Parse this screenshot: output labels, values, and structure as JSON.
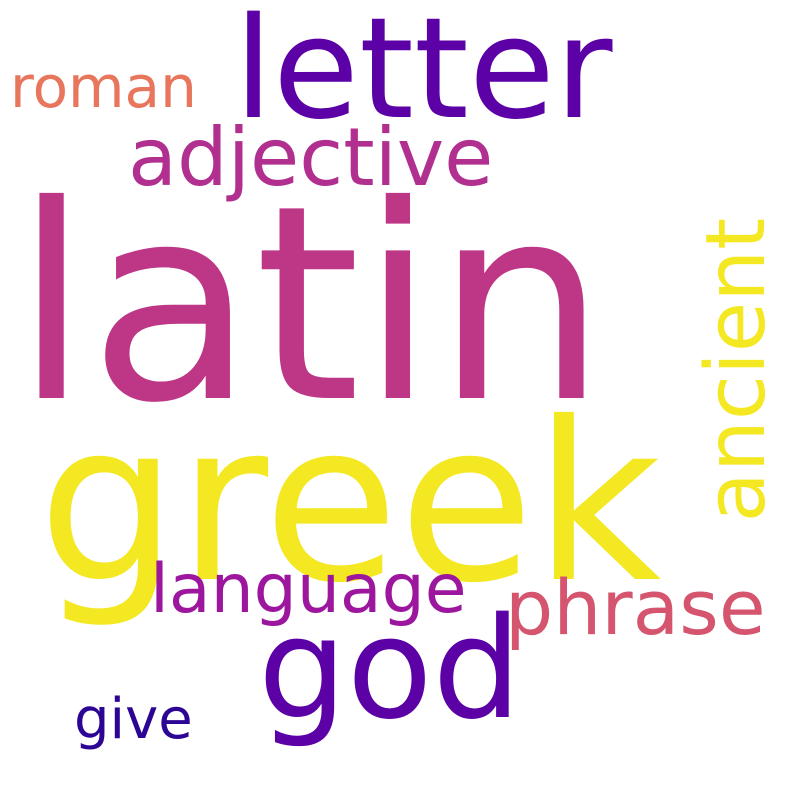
{
  "cloud": {
    "background": "#ffffff",
    "words": {
      "latin": {
        "text": "latin",
        "color": "#bd3786",
        "orientation": "horizontal"
      },
      "greek": {
        "text": "greek",
        "color": "#f3e821",
        "orientation": "horizontal"
      },
      "letter": {
        "text": "letter",
        "color": "#5c01a6",
        "orientation": "horizontal"
      },
      "god": {
        "text": "god",
        "color": "#5c01a6",
        "orientation": "horizontal"
      },
      "adjective": {
        "text": "adjective",
        "color": "#b02f8f",
        "orientation": "horizontal"
      },
      "ancient": {
        "text": "ancient",
        "color": "#f3e821",
        "orientation": "vertical"
      },
      "phrase": {
        "text": "phrase",
        "color": "#d5546e",
        "orientation": "horizontal"
      },
      "language": {
        "text": "language",
        "color": "#9c179e",
        "orientation": "horizontal"
      },
      "roman": {
        "text": "roman",
        "color": "#e8765c",
        "orientation": "horizontal"
      },
      "give": {
        "text": "give",
        "color": "#2d0594",
        "orientation": "horizontal"
      }
    }
  }
}
